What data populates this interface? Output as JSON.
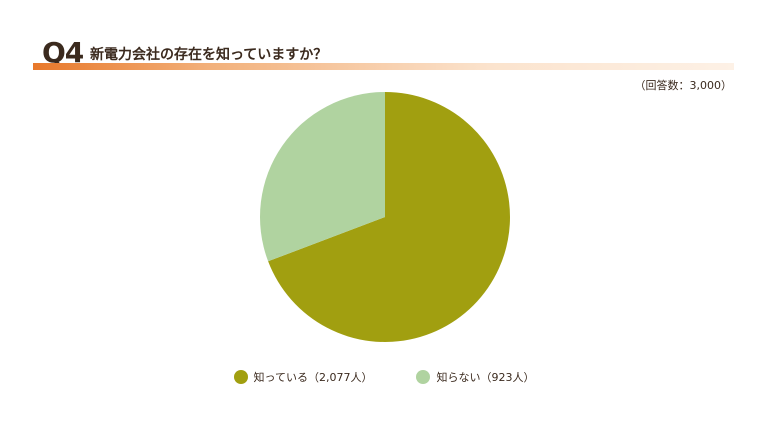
{
  "header": {
    "question_number": "Q4",
    "question_text": "新電力会社の存在を知っていますか？"
  },
  "respondents": "（回答数：3,000）",
  "colors": {
    "accent": "#e8782a",
    "known": "#a19f10",
    "unknown": "#b0d3a0",
    "text": "#3b2a1e"
  },
  "chart_data": {
    "type": "pie",
    "title": "新電力会社の存在を知っていますか？",
    "total": 3000,
    "slices": [
      {
        "label": "知っている（2,077人）",
        "category": "知っている",
        "value": 2077,
        "color": "#a19f10"
      },
      {
        "label": "知らない（923人）",
        "category": "知らない",
        "value": 923,
        "color": "#b0d3a0"
      }
    ],
    "start_angle_deg": 0,
    "direction": "clockwise",
    "legend_position": "bottom"
  }
}
